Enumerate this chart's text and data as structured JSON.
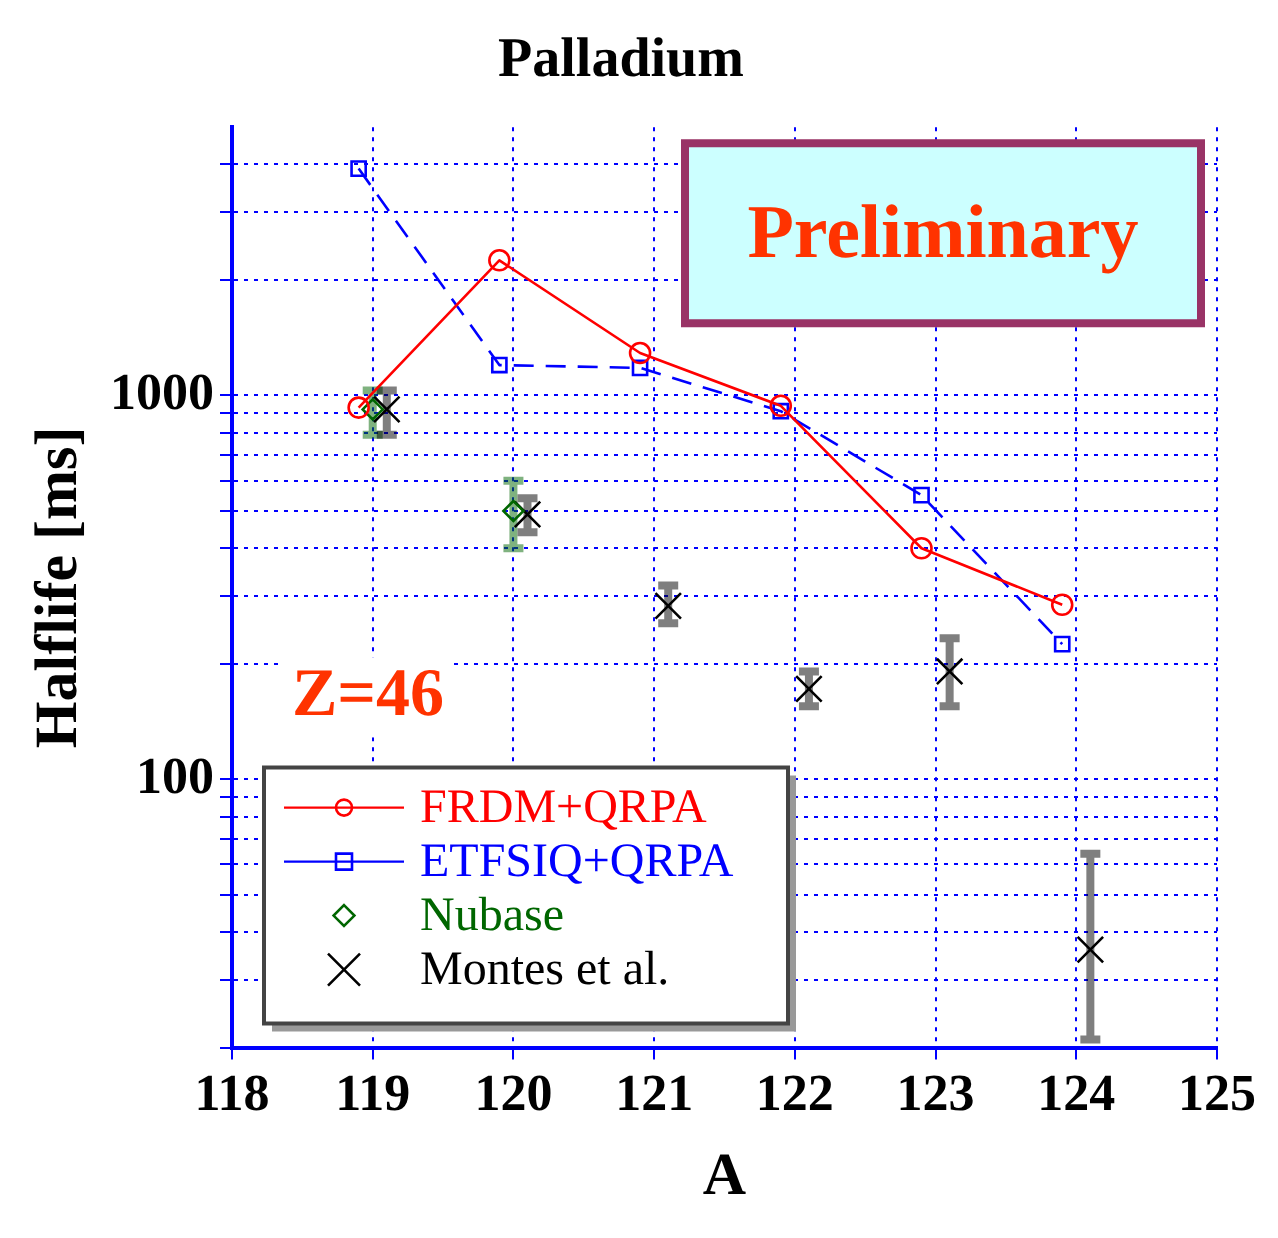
{
  "chart_data": {
    "type": "line",
    "title": "Palladium",
    "xlabel": "A",
    "ylabel": "Halflife [ms]",
    "annotations": [
      "Preliminary",
      "Z=46"
    ],
    "xlim": [
      118,
      125
    ],
    "xticks": [
      118,
      119,
      120,
      121,
      122,
      123,
      124,
      125
    ],
    "ylim": [
      20,
      5000
    ],
    "log": "y",
    "grid": true,
    "legend": "bottom left",
    "yticks": [
      {
        "value": 20,
        "label": null
      },
      {
        "value": 30,
        "label": null
      },
      {
        "value": 40,
        "label": null
      },
      {
        "value": 50,
        "label": null
      },
      {
        "value": 60,
        "label": null
      },
      {
        "value": 70,
        "label": null
      },
      {
        "value": 80,
        "label": null
      },
      {
        "value": 90,
        "label": null
      },
      100,
      {
        "value": 200,
        "label": null
      },
      {
        "value": 300,
        "label": null
      },
      {
        "value": 400,
        "label": null
      },
      {
        "value": 500,
        "label": null
      },
      {
        "value": 600,
        "label": null
      },
      {
        "value": 700,
        "label": null
      },
      {
        "value": 800,
        "label": null
      },
      {
        "value": 900,
        "label": null
      },
      1000,
      {
        "value": 2000,
        "label": null
      },
      {
        "value": 3000,
        "label": null
      },
      {
        "value": 4000,
        "label": null
      }
    ],
    "series": [
      {
        "name": "FRDM+QRPA",
        "color": "#ff0000",
        "marker": "circle",
        "line_style": "solid",
        "x": [
          118.9,
          119.9,
          120.9,
          121.9,
          122.9,
          123.9
        ],
        "values": [
          930,
          2250,
          1290,
          940,
          400,
          285
        ]
      },
      {
        "name": "ETFSIQ+QRPA",
        "color": "#0000ff",
        "marker": "square",
        "line_style": "dashed",
        "x": [
          118.9,
          119.9,
          120.9,
          121.9,
          122.9,
          123.9
        ],
        "values": [
          3900,
          1200,
          1180,
          910,
          550,
          225
        ]
      },
      {
        "name": "Nubase",
        "type": "scatter",
        "color": "#006600",
        "marker": "diamond",
        "x": [
          119,
          120
        ],
        "values": [
          920,
          500
        ],
        "errors": [
          [
            790,
            1030
          ],
          [
            400,
            600
          ]
        ]
      },
      {
        "name": "Montes et al.",
        "type": "scatter",
        "color": "#000000",
        "marker": "cross",
        "x": [
          119.1,
          120.1,
          121.1,
          122.1,
          123.1,
          124.1
        ],
        "values": [
          920,
          490,
          283,
          172,
          191,
          36
        ],
        "errors": [
          [
            790,
            1030
          ],
          [
            440,
            540
          ],
          [
            255,
            320
          ],
          [
            155,
            191
          ],
          [
            155,
            233
          ],
          [
            21,
            64
          ]
        ]
      }
    ]
  }
}
